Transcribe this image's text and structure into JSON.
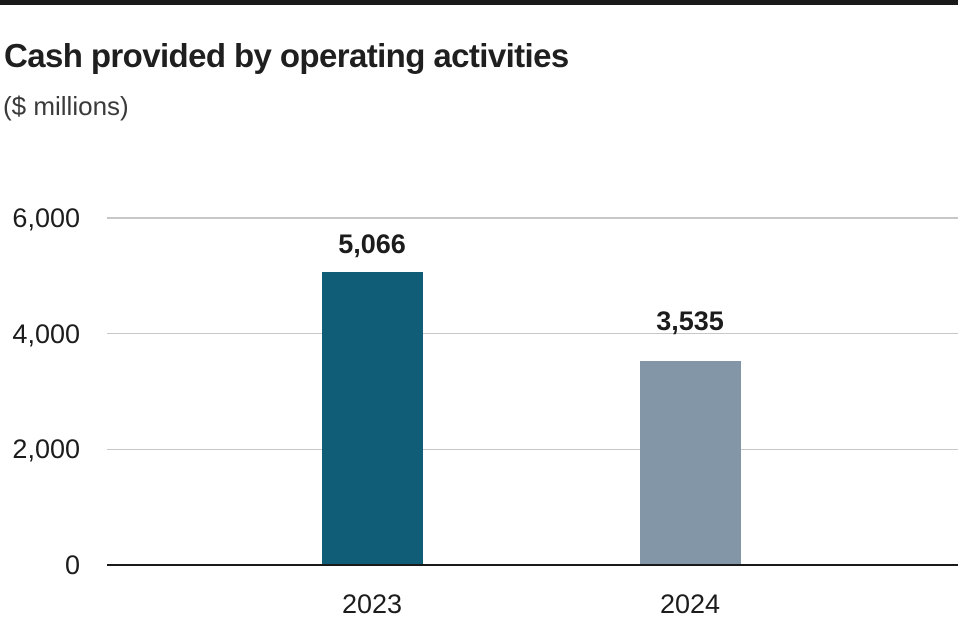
{
  "chart_data": {
    "type": "bar",
    "title": "Cash provided by operating activities",
    "subtitle": "($ millions)",
    "categories": [
      "2023",
      "2024"
    ],
    "values": [
      5066,
      3535
    ],
    "value_labels": [
      "5,066",
      "3,535"
    ],
    "series_colors": [
      "#0f5d76",
      "#8296a8"
    ],
    "xlabel": "",
    "ylabel": "",
    "ylim": [
      0,
      6000
    ],
    "yticks": [
      {
        "value": 0,
        "label": "0"
      },
      {
        "value": 2000,
        "label": "2,000"
      },
      {
        "value": 4000,
        "label": "4,000"
      },
      {
        "value": 6000,
        "label": "6,000"
      }
    ],
    "grid": true,
    "legend_position": "none"
  },
  "colors": {
    "top_rule": "#1a1a1a",
    "title_text": "#1f1f1f",
    "subtitle_text": "#3a3a3a",
    "axis_text": "#1c1c1c",
    "gridline": "#c7c7c7",
    "baseline": "#1a1a1a",
    "background": "#ffffff"
  }
}
